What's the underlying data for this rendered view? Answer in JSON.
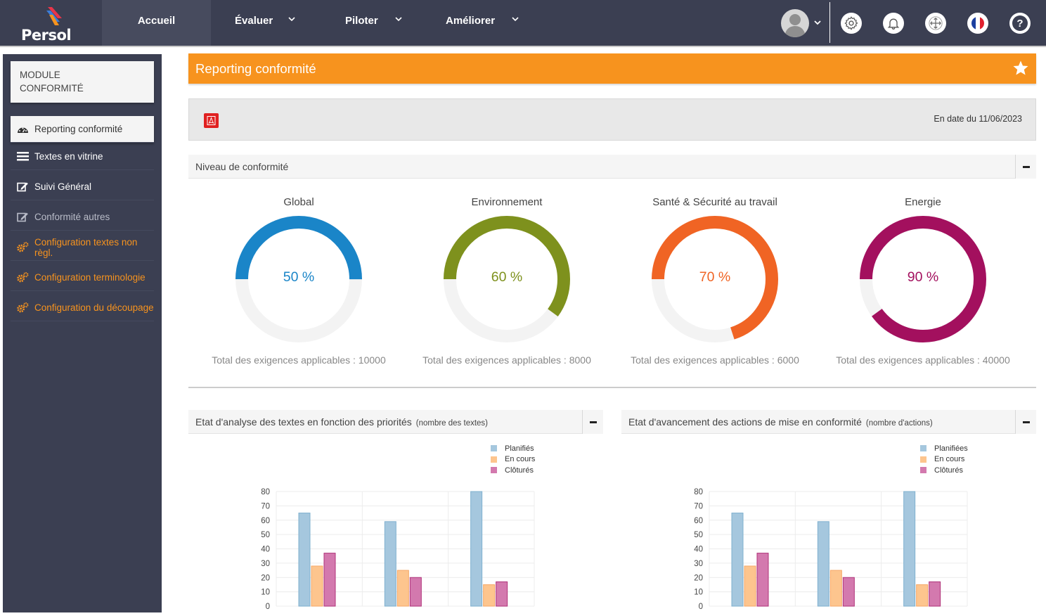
{
  "brand": {
    "name": "Persol"
  },
  "nav": {
    "items": [
      {
        "label": "Accueil",
        "active": true
      },
      {
        "label": "Évaluer",
        "dropdown": true
      },
      {
        "label": "Piloter",
        "dropdown": true
      },
      {
        "label": "Améliorer",
        "dropdown": true
      }
    ],
    "icons": [
      "user-avatar",
      "gear-icon",
      "bell-icon",
      "move-icon",
      "french-flag-icon",
      "help-icon"
    ]
  },
  "sidebar": {
    "module_line1": "MODULE",
    "module_line2": "CONFORMITÉ",
    "items": [
      {
        "label": "Reporting conformité",
        "icon": "dashboard-icon",
        "state": "active"
      },
      {
        "label": "Textes en vitrine",
        "icon": "list-icon",
        "state": "white"
      },
      {
        "label": "Suivi Général",
        "icon": "edit-icon",
        "state": "white"
      },
      {
        "label": "Conformité autres",
        "icon": "edit-icon",
        "state": "grey"
      },
      {
        "label": "Configuration textes non règl.",
        "icon": "cogs-icon",
        "state": "orange"
      },
      {
        "label": "Configuration terminologie",
        "icon": "cogs-icon",
        "state": "orange"
      },
      {
        "label": "Configuration du découpage",
        "icon": "cogs-icon",
        "state": "orange"
      }
    ]
  },
  "page": {
    "title": "Reporting conformité",
    "date_text": "En date du 11/06/2023"
  },
  "conformity": {
    "panel_title": "Niveau de conformité",
    "gauges": [
      {
        "title": "Global",
        "percent": 50,
        "pct_text": "50 %",
        "total_text": "Total des exigences applicables : 10000",
        "color": "#1a85c8"
      },
      {
        "title": "Environnement",
        "percent": 60,
        "pct_text": "60 %",
        "total_text": "Total des exigences applicables : 8000",
        "color": "#7e911d"
      },
      {
        "title": "Santé & Sécurité au travail",
        "percent": 70,
        "pct_text": "70 %",
        "total_text": "Total des exigences applicables : 6000",
        "color": "#f06424"
      },
      {
        "title": "Energie",
        "percent": 90,
        "pct_text": "90 %",
        "total_text": "Total des exigences applicables : 40000",
        "color": "#a3105e"
      }
    ]
  },
  "analysis_panel": {
    "title": "Etat d'analyse des textes en fonction des priorités",
    "subtitle": "(nombre des textes)"
  },
  "actions_panel": {
    "title": "Etat d'avancement des actions de mise en conformité",
    "subtitle": "(nombre d'actions)"
  },
  "chart_data": [
    {
      "type": "bar",
      "title": "Etat d'analyse des textes en fonction des priorités",
      "categories": [
        "",
        "",
        ""
      ],
      "series": [
        {
          "name": "Planifiés",
          "values": [
            65,
            59,
            80
          ],
          "color": "#a5c7de"
        },
        {
          "name": "En cours",
          "values": [
            28,
            25,
            15
          ],
          "color": "#fdc58e"
        },
        {
          "name": "Clôturés",
          "values": [
            37,
            20,
            17
          ],
          "color": "#d379ae"
        }
      ],
      "ylim": [
        0,
        80
      ],
      "yticks": [
        "0",
        "10",
        "20",
        "30",
        "40",
        "50",
        "60",
        "70",
        "80"
      ],
      "legend": "top-right",
      "grid": true
    },
    {
      "type": "bar",
      "title": "Etat d'avancement des actions de mise en conformité",
      "categories": [
        "",
        "",
        ""
      ],
      "series": [
        {
          "name": "Planifiées",
          "values": [
            65,
            59,
            80
          ],
          "color": "#a5c7de"
        },
        {
          "name": "En cours",
          "values": [
            28,
            25,
            15
          ],
          "color": "#fdc58e"
        },
        {
          "name": "Clôturés",
          "values": [
            37,
            20,
            17
          ],
          "color": "#d379ae"
        }
      ],
      "ylim": [
        0,
        80
      ],
      "yticks": [
        "0",
        "10",
        "20",
        "30",
        "40",
        "50",
        "60",
        "70",
        "80"
      ],
      "legend": "top-right",
      "grid": true
    }
  ]
}
